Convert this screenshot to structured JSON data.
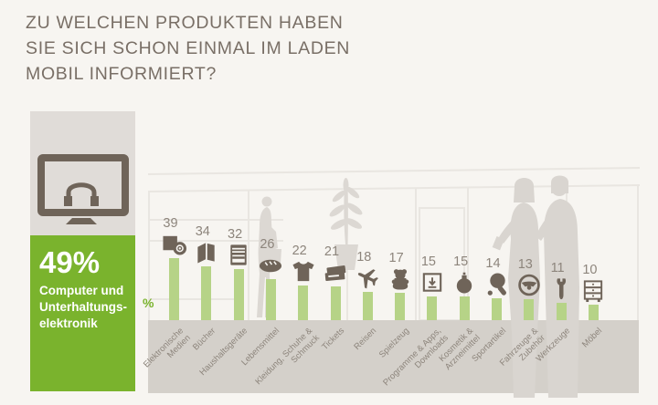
{
  "title": "ZU WELCHEN PRODUKTEN HABEN\nSIE SICH SCHON EINMAL IM LADEN\nMOBIL INFORMIERT?",
  "unit_label": "%",
  "highlight": {
    "value": "49%",
    "label": "Computer und\nUnterhaltungs-\nelektronik",
    "icon": "tv-headphones-icon"
  },
  "chart_data": {
    "type": "bar",
    "title": "Zu welchen Produkten haben Sie sich schon einmal im Laden mobil informiert?",
    "unit": "%",
    "ylim": [
      0,
      50
    ],
    "grid": false,
    "legend": "none",
    "highlight": {
      "category": "Computer und Unterhaltungselektronik",
      "value": 49
    },
    "categories": [
      "Elektronische Medien",
      "Bücher",
      "Haushaltsgeräte",
      "Lebensmittel",
      "Kleidung, Schuhe & Schmuck",
      "Tickets",
      "Reisen",
      "Spielzeug",
      "Programme & Apps, Downloads",
      "Kosmetik & Arzneimittel",
      "Sportartikel",
      "Fahrzeuge & Zubehör",
      "Werkzeuge",
      "Möbel"
    ],
    "label_display": [
      "Elektronische\nMedien",
      "Bücher",
      "Haushaltsgeräte",
      "Lebensmittel",
      "Kleidung, Schuhe &\nSchmuck",
      "Tickets",
      "Reisen",
      "Spielzeug",
      "Programme & Apps,\nDownloads",
      "Kosmetik &\nArzneimittel",
      "Sportartikel",
      "Fahrzeuge &\nZubehör",
      "Werkzeuge",
      "Möbel"
    ],
    "values": [
      39,
      34,
      32,
      26,
      22,
      21,
      18,
      17,
      15,
      15,
      14,
      13,
      11,
      10
    ],
    "icons": [
      "electronic-media-icon",
      "book-icon",
      "appliance-icon",
      "bread-icon",
      "tshirt-icon",
      "tickets-icon",
      "airplane-icon",
      "teddy-bear-icon",
      "download-icon",
      "perfume-icon",
      "table-tennis-icon",
      "steering-wheel-icon",
      "wrench-icon",
      "furniture-icon"
    ]
  },
  "colors": {
    "background": "#f7f5f1",
    "accent_green": "#7ab32d",
    "bar_green": "#b6d387",
    "icon_brown": "#6f6459",
    "number_gray": "#8d857c",
    "platform_gray": "#d4d0ca",
    "panel_gray": "#e0dcd8",
    "title_gray": "#796f66"
  }
}
